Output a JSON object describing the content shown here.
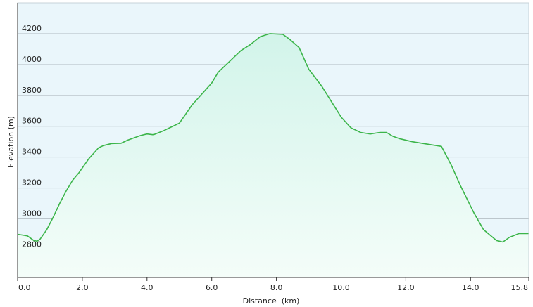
{
  "chart_data": {
    "type": "area",
    "title": "",
    "xlabel": "Distance  (km)",
    "ylabel": "Elevation (m)",
    "xlim": [
      0,
      15.8
    ],
    "ylim": [
      2620,
      4400
    ],
    "x_ticks": [
      0,
      2,
      4,
      6,
      8,
      10,
      12,
      14,
      15.8
    ],
    "x_tick_labels": [
      "0.0",
      "2.0",
      "4.0",
      "6.0",
      "8.0",
      "10.0",
      "12.0",
      "14.0",
      "15.8"
    ],
    "y_ticks": [
      2800,
      3000,
      3200,
      3400,
      3600,
      3800,
      4000,
      4200
    ],
    "y_tick_labels": [
      "2800",
      "3000",
      "3200",
      "3400",
      "3600",
      "3800",
      "4000",
      "4200"
    ],
    "grid": true,
    "legend": "none",
    "colors": {
      "line": "#3cb54a",
      "fill_top": "#d2f4ea",
      "fill_bottom": "#f4fdf9",
      "plot_background": "#eaf6fb",
      "grid": "#bcc6cc",
      "axis": "#333333"
    },
    "series": [
      {
        "x": [
          0.0,
          0.3,
          0.5,
          0.6,
          0.7,
          0.9,
          1.1,
          1.3,
          1.5,
          1.7,
          1.9,
          2.2,
          2.5,
          2.65,
          2.9,
          3.2,
          3.4,
          3.8,
          4.0,
          4.2,
          4.5,
          4.7,
          5.0,
          5.2,
          5.4,
          5.7,
          6.0,
          6.2,
          6.5,
          6.9,
          7.2,
          7.5,
          7.8,
          8.2,
          8.4,
          8.7,
          9.0,
          9.4,
          9.7,
          10.0,
          10.3,
          10.6,
          10.9,
          11.2,
          11.4,
          11.6,
          11.8,
          12.2,
          12.5,
          13.1,
          13.4,
          13.7,
          14.1,
          14.4,
          14.8,
          15.0,
          15.2,
          15.5,
          15.8
        ],
        "y": [
          2900,
          2890,
          2860,
          2855,
          2870,
          2930,
          3010,
          3100,
          3180,
          3250,
          3300,
          3390,
          3460,
          3475,
          3488,
          3490,
          3510,
          3540,
          3550,
          3545,
          3570,
          3590,
          3620,
          3680,
          3740,
          3810,
          3880,
          3950,
          4010,
          4090,
          4130,
          4180,
          4200,
          4195,
          4165,
          4110,
          3970,
          3860,
          3760,
          3660,
          3590,
          3560,
          3550,
          3560,
          3560,
          3535,
          3520,
          3500,
          3490,
          3470,
          3350,
          3210,
          3040,
          2930,
          2860,
          2850,
          2880,
          2905,
          2905
        ]
      }
    ]
  }
}
